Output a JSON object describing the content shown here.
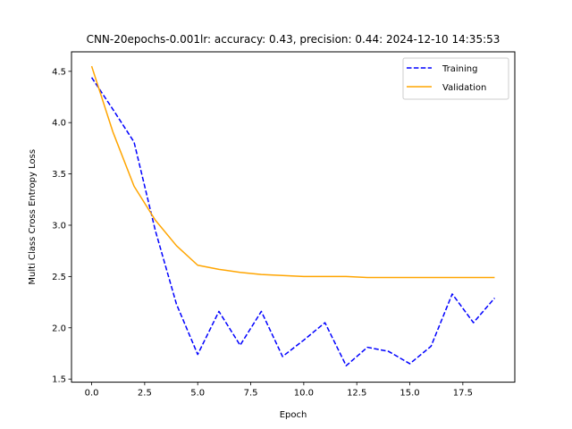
{
  "chart_data": {
    "type": "line",
    "title": "CNN-20epochs-0.001lr: accuracy: 0.43, precision: 0.44: 2024-12-10 14:35:53",
    "xlabel": "Epoch",
    "ylabel": "Multi Class Cross Entropy Loss",
    "xlim": [
      -0.95,
      19.95
    ],
    "ylim": [
      1.47,
      4.69
    ],
    "x_ticks": [
      0.0,
      2.5,
      5.0,
      7.5,
      10.0,
      12.5,
      15.0,
      17.5
    ],
    "x_tick_labels": [
      "0.0",
      "2.5",
      "5.0",
      "7.5",
      "10.0",
      "12.5",
      "15.0",
      "17.5"
    ],
    "y_ticks": [
      1.5,
      2.0,
      2.5,
      3.0,
      3.5,
      4.0,
      4.5
    ],
    "y_tick_labels": [
      "1.5",
      "2.0",
      "2.5",
      "3.0",
      "3.5",
      "4.0",
      "4.5"
    ],
    "grid": false,
    "legend_position": "top-right",
    "x": [
      0,
      1,
      2,
      3,
      4,
      5,
      6,
      7,
      8,
      9,
      10,
      11,
      12,
      13,
      14,
      15,
      16,
      17,
      18,
      19
    ],
    "series": [
      {
        "name": "Training",
        "color": "#0000ff",
        "style": "dashed",
        "values": [
          4.44,
          4.13,
          3.81,
          2.95,
          2.23,
          1.74,
          2.16,
          1.83,
          2.16,
          1.72,
          1.88,
          2.05,
          1.63,
          1.81,
          1.77,
          1.65,
          1.82,
          2.33,
          2.05,
          2.29
        ]
      },
      {
        "name": "Validation",
        "color": "#ffa500",
        "style": "solid",
        "values": [
          4.55,
          3.91,
          3.38,
          3.05,
          2.8,
          2.61,
          2.57,
          2.54,
          2.52,
          2.51,
          2.5,
          2.5,
          2.5,
          2.49,
          2.49,
          2.49,
          2.49,
          2.49,
          2.49,
          2.49
        ]
      }
    ]
  }
}
